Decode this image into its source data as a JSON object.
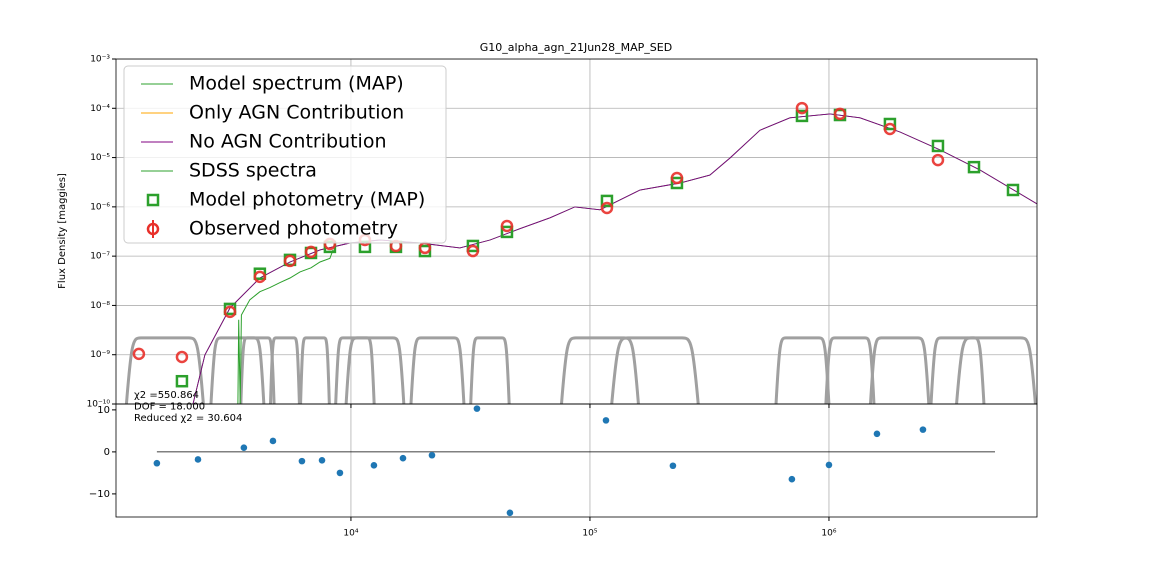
{
  "chart_data": [
    {
      "type": "sed",
      "title": "G10_alpha_agn_21Jun28_MAP_SED",
      "ylabel": "Flux Density [maggies]",
      "log_x": true,
      "log_y": true,
      "grid": true,
      "legend": "upper left",
      "xlim": [
        1040,
        7420000
      ],
      "ylim": [
        1e-10,
        0.001
      ],
      "xticks": [
        {
          "value": 10000,
          "label": "10⁴"
        },
        {
          "value": 100000,
          "label": "10⁵"
        },
        {
          "value": 1000000,
          "label": "10⁶"
        }
      ],
      "yticks": [
        {
          "value": 1e-10,
          "label": "10⁻¹⁰"
        },
        {
          "value": 1e-09,
          "label": "10⁻⁹"
        },
        {
          "value": 1e-08,
          "label": "10⁻⁸"
        },
        {
          "value": 1e-07,
          "label": "10⁻⁷"
        },
        {
          "value": 1e-06,
          "label": "10⁻⁶"
        },
        {
          "value": 1e-05,
          "label": "10⁻⁵"
        },
        {
          "value": 0.0001,
          "label": "10⁻⁴"
        },
        {
          "value": 0.001,
          "label": "10⁻³"
        }
      ],
      "filters": {
        "color": "#a0a0a0",
        "peak": 2.2e-09,
        "ranges": [
          [
            1133,
            2449
          ],
          [
            2570,
            4365
          ],
          [
            3440,
            4800
          ],
          [
            4581,
            6121
          ],
          [
            6121,
            8166
          ],
          [
            8570,
            12600
          ],
          [
            9440,
            16830
          ],
          [
            17650,
            30000
          ],
          [
            31470,
            46260
          ],
          [
            74900,
            161900
          ],
          [
            121300,
            288600
          ],
          [
            594400,
            1009700
          ],
          [
            961800,
            1557000
          ],
          [
            1475000,
            2646000
          ],
          [
            2646000,
            4496000
          ],
          [
            3367000,
            7420000
          ]
        ]
      },
      "series": [
        {
          "name": "Model spectrum (MAP)",
          "color": "#2ca02c",
          "kind": "line",
          "x": [
            2183,
            2449,
            3119,
            4159,
            5559,
            7419,
            9900,
            13220,
            19440,
            28580,
            38170,
            50930,
            68030,
            86530,
            110200,
            161900,
            238100,
            317700,
            385400,
            514400,
            686600,
            1009700,
            1348000,
            1982000,
            2915000,
            4285000,
            7420000
          ],
          "values": [
            1e-10,
            9.9e-10,
            8.9e-09,
            3.6e-08,
            7.6e-08,
            1.34e-07,
            1.85e-07,
            2.13e-07,
            1.85e-07,
            1.47e-07,
            2.13e-07,
            3.6e-07,
            6e-07,
            1e-06,
            8.7e-07,
            2.2e-06,
            3.05e-06,
            4.4e-06,
            9.8e-06,
            3.6e-05,
            6.4e-05,
            7.7e-05,
            6.4e-05,
            3.3e-05,
            1.43e-05,
            5.6e-06,
            1.15e-06
          ]
        },
        {
          "name": "Only AGN Contribution",
          "color": "#ffa500",
          "kind": "line"
        },
        {
          "name": "No AGN Contribution",
          "color": "#800080",
          "kind": "line",
          "x": [
            2183,
            2449,
            3119,
            4159,
            5559,
            7419,
            9900,
            13220,
            19440,
            28580,
            38170,
            50930,
            68030,
            86530,
            110200,
            161900,
            238100,
            317700,
            385400,
            514400,
            686600,
            1009700,
            1348000,
            1982000,
            2915000,
            4285000,
            7420000
          ],
          "values": [
            1e-10,
            9.9e-10,
            8.9e-09,
            3.6e-08,
            7.6e-08,
            1.34e-07,
            1.85e-07,
            2.13e-07,
            1.85e-07,
            1.47e-07,
            2.13e-07,
            3.6e-07,
            6e-07,
            1e-06,
            8.7e-07,
            2.2e-06,
            3.05e-06,
            4.4e-06,
            9.8e-06,
            3.6e-05,
            6.4e-05,
            7.7e-05,
            6.4e-05,
            3.3e-05,
            1.43e-05,
            5.6e-06,
            1.15e-06
          ]
        },
        {
          "name": "SDSS spectra",
          "color": "#2ca02c",
          "kind": "line",
          "x": [
            3365,
            3390,
            3440,
            3480,
            3776,
            4159,
            4581,
            5047,
            5559,
            6121,
            6806,
            7419,
            8166,
            8414
          ],
          "values": [
            1e-10,
            5.1e-09,
            1e-10,
            6.4e-09,
            1.3e-08,
            1.9e-08,
            2.3e-08,
            2.9e-08,
            3.6e-08,
            4.8e-08,
            5.8e-08,
            7.6e-08,
            9e-08,
            1.34e-07
          ]
        },
        {
          "name": "Model photometry (MAP)",
          "color": "#2ca02c",
          "kind": "square",
          "x": [
            1963,
            3119,
            4159,
            5559,
            6806,
            8166,
            11445,
            15430,
            20400,
            32380,
            44960,
            117800,
            231200,
            771000,
            1112000,
            1799000,
            2858000,
            4044000,
            5888000
          ],
          "values": [
            2.9e-10,
            8.5e-09,
            4.4e-08,
            8.4e-08,
            1.16e-07,
            1.54e-07,
            1.54e-07,
            1.54e-07,
            1.27e-07,
            1.61e-07,
            3.1e-07,
            1.32e-06,
            3.05e-06,
            7e-05,
            7.3e-05,
            4.8e-05,
            1.72e-05,
            6.4e-06,
            2.2e-06
          ]
        },
        {
          "name": "Observed photometry",
          "color": "#e8302a",
          "kind": "circle",
          "x": [
            1297,
            1963,
            3119,
            4159,
            5559,
            6806,
            8166,
            11445,
            15430,
            20400,
            32380,
            44960,
            117800,
            231200,
            771000,
            1112000,
            1799000,
            2858000
          ],
          "values": [
            1.04e-09,
            9e-10,
            7.4e-09,
            3.8e-08,
            8e-08,
            1.22e-07,
            1.77e-07,
            2.13e-07,
            1.61e-07,
            1.47e-07,
            1.27e-07,
            4.1e-07,
            9.5e-07,
            3.86e-06,
            0.000101,
            7.7e-05,
            3.8e-05,
            8.9e-06
          ]
        }
      ]
    },
    {
      "type": "scatter",
      "log_x": true,
      "grid": true,
      "color": "#1f77b4",
      "xlim": [
        1040,
        7420000
      ],
      "ylim": [
        -15.5,
        11.4
      ],
      "xticks": [
        {
          "value": 10000,
          "label": "10⁴"
        },
        {
          "value": 100000,
          "label": "10⁵"
        },
        {
          "value": 1000000,
          "label": "10⁶"
        }
      ],
      "yticks": [
        10,
        0,
        {
          "value": -10,
          "label": "−10"
        }
      ],
      "annotations": [
        "χ2 =550.864",
        "DOF = 18.000",
        "Reduced χ2 = 30.604"
      ],
      "baseline": {
        "x": [
          1542,
          4951000
        ],
        "value": 0,
        "color": "#000000"
      },
      "x": [
        1542,
        2291,
        3565,
        4718,
        6237,
        7568,
        8995,
        12480,
        16510,
        21830,
        33670,
        46260,
        116700,
        222400,
        699700,
        1000000,
        1588000,
        2473000
      ],
      "values": [
        -2.7,
        -1.8,
        1,
        2.6,
        -2.2,
        -2,
        -5,
        -3.2,
        -1.5,
        -0.8,
        10.3,
        -14.5,
        7.5,
        -3.3,
        -6.5,
        -3.1,
        4.3,
        5.3
      ]
    }
  ]
}
